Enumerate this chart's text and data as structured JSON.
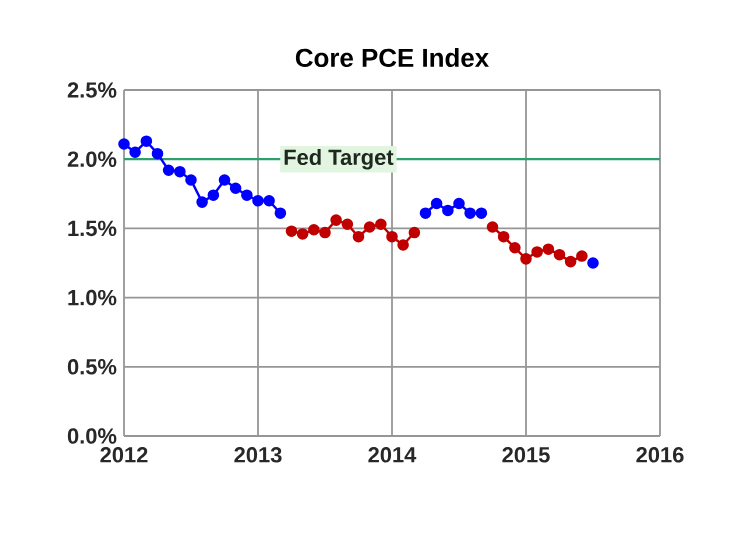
{
  "chart_data": {
    "type": "line",
    "title": "Core PCE Index",
    "x": [
      2012.0,
      2012.083,
      2012.167,
      2012.25,
      2012.333,
      2012.417,
      2012.5,
      2012.583,
      2012.667,
      2012.75,
      2012.833,
      2012.917,
      2013.0,
      2013.083,
      2013.167,
      2013.25,
      2013.333,
      2013.417,
      2013.5,
      2013.583,
      2013.667,
      2013.75,
      2013.833,
      2013.917,
      2014.0,
      2014.083,
      2014.167,
      2014.25,
      2014.333,
      2014.417,
      2014.5,
      2014.583,
      2014.667,
      2014.75,
      2014.833,
      2014.917,
      2015.0,
      2015.083,
      2015.167,
      2015.25,
      2015.333,
      2015.417,
      2015.5
    ],
    "series": [
      {
        "color": "#0000ff",
        "values": [
          2.11,
          2.05,
          2.13,
          2.04,
          1.92,
          1.91,
          1.85,
          1.69,
          1.74,
          1.85,
          1.79,
          1.74,
          1.7,
          1.7,
          1.61,
          null,
          null,
          null,
          null,
          null,
          null,
          null,
          null,
          null,
          null,
          null,
          null,
          1.61,
          1.68,
          1.63,
          1.68,
          1.61,
          1.61,
          null,
          null,
          null,
          null,
          null,
          null,
          null,
          null,
          null,
          1.25
        ]
      },
      {
        "color": "#c00000",
        "values": [
          null,
          null,
          null,
          null,
          null,
          null,
          null,
          null,
          null,
          null,
          null,
          null,
          null,
          null,
          null,
          1.48,
          1.46,
          1.49,
          1.47,
          1.56,
          1.53,
          1.44,
          1.51,
          1.53,
          1.44,
          1.38,
          1.47,
          null,
          null,
          null,
          null,
          null,
          null,
          1.51,
          1.44,
          1.36,
          1.28,
          1.33,
          1.35,
          1.31,
          1.26,
          1.3,
          null
        ]
      }
    ],
    "xlim": [
      2012,
      2016
    ],
    "xticks": [
      2012,
      2013,
      2014,
      2015,
      2016
    ],
    "ylim": [
      0,
      2.5
    ],
    "yticks": [
      {
        "value": 0,
        "label": "0.0%"
      },
      {
        "value": 0.5,
        "label": "0.5%"
      },
      {
        "value": 1.0,
        "label": "1.0%"
      },
      {
        "value": 1.5,
        "label": "1.5%"
      },
      {
        "value": 2.0,
        "label": "2.0%"
      },
      {
        "value": 2.5,
        "label": "2.5%"
      }
    ],
    "ref_lines": [
      {
        "axis": "y",
        "value": 2.0,
        "label": "Fed Target",
        "color": "#2e9e6a"
      }
    ],
    "grid": true,
    "marker": "circle",
    "line_style": "solid"
  }
}
